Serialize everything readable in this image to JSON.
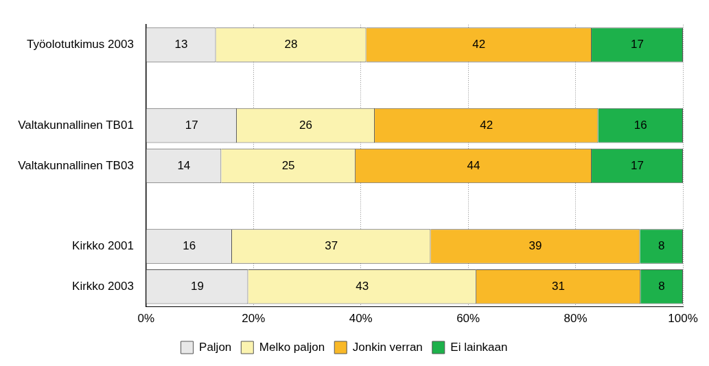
{
  "chart_data": {
    "type": "bar",
    "orientation": "horizontal",
    "stacked": true,
    "categories": [
      "Työolotutkimus 2003",
      null,
      "Valtakunnallinen TB01",
      "Valtakunnallinen TB03",
      null,
      "Kirkko 2001",
      "Kirkko 2003"
    ],
    "series": [
      {
        "name": "Paljon",
        "color": "#e8e8e8",
        "values": [
          13,
          null,
          16.9,
          14,
          null,
          16,
          19.0
        ],
        "value_labels": [
          "13",
          null,
          "17",
          "14",
          null,
          "16",
          "19"
        ]
      },
      {
        "name": "Melko paljon",
        "color": "#fbf3b0",
        "values": [
          28,
          null,
          25.7,
          25,
          null,
          37,
          42.5
        ],
        "value_labels": [
          "28",
          null,
          "26",
          "25",
          null,
          "37",
          "43"
        ]
      },
      {
        "name": "Jonkin verran",
        "color": "#f9b928",
        "values": [
          42,
          null,
          41.6,
          44,
          null,
          39,
          30.6
        ],
        "value_labels": [
          "42",
          null,
          "42",
          "44",
          null,
          "39",
          "31"
        ]
      },
      {
        "name": "Ei lainkaan",
        "color": "#1db14b",
        "values": [
          17,
          null,
          15.8,
          17,
          null,
          8,
          7.9
        ],
        "value_labels": [
          "17",
          null,
          "16",
          "17",
          null,
          "8",
          "8"
        ]
      }
    ],
    "xlim": [
      0,
      100
    ],
    "xticks": [
      {
        "value": 0,
        "label": "0%"
      },
      {
        "value": 20,
        "label": "20%"
      },
      {
        "value": 40,
        "label": "40%"
      },
      {
        "value": 60,
        "label": "60%"
      },
      {
        "value": 80,
        "label": "80%"
      },
      {
        "value": 100,
        "label": "100%"
      }
    ],
    "grid": "x",
    "legend": "bottom"
  }
}
